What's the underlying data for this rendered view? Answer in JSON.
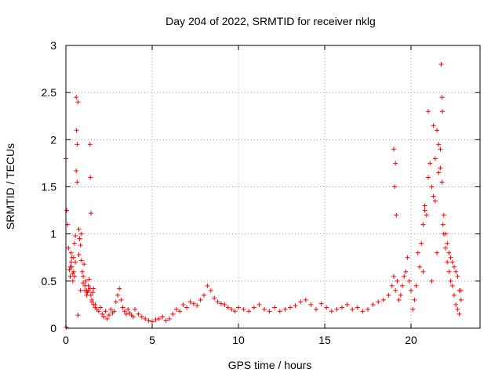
{
  "chart_data": {
    "type": "scatter",
    "title": "Day 204 of 2022, SRMTID for receiver nklg",
    "xlabel": "GPS time / hours",
    "ylabel": "SRMTID / TECUs",
    "xlim": [
      0,
      24
    ],
    "ylim": [
      0,
      3
    ],
    "xticks": [
      0,
      5,
      10,
      15,
      20
    ],
    "yticks": [
      0,
      0.5,
      1,
      1.5,
      2,
      2.5,
      3
    ],
    "xtick_labels": [
      "0",
      "5",
      "10",
      "15",
      "20"
    ],
    "ytick_labels": [
      "0",
      "0.5",
      "1",
      "1.5",
      "2",
      "2.5",
      "3"
    ],
    "grid": true,
    "marker": "+",
    "color": "#ff0000",
    "series": [
      {
        "name": "nklg",
        "x": [
          0.0,
          0.05,
          0.1,
          0.15,
          0.2,
          0.25,
          0.3,
          0.35,
          0.4,
          0.45,
          0.5,
          0.55,
          0.6,
          0.65,
          0.7,
          0.75,
          0.8,
          0.85,
          0.9,
          0.95,
          1.0,
          1.05,
          1.1,
          1.15,
          1.2,
          1.25,
          1.3,
          1.35,
          1.4,
          1.45,
          1.5,
          1.55,
          1.6,
          1.7,
          1.8,
          1.9,
          2.0,
          2.1,
          2.2,
          2.3,
          2.4,
          2.5,
          2.6,
          2.7,
          2.8,
          2.9,
          3.0,
          3.1,
          3.2,
          3.3,
          3.4,
          3.5,
          3.6,
          3.7,
          3.8,
          3.9,
          4.0,
          4.2,
          4.4,
          4.6,
          4.8,
          5.0,
          5.2,
          5.4,
          5.6,
          5.8,
          6.0,
          6.2,
          6.4,
          6.6,
          6.8,
          7.0,
          7.2,
          7.4,
          7.6,
          7.8,
          8.0,
          8.2,
          8.4,
          8.6,
          8.8,
          9.0,
          9.2,
          9.4,
          9.6,
          9.8,
          10.0,
          10.3,
          10.6,
          10.9,
          11.2,
          11.5,
          11.8,
          12.1,
          12.4,
          12.7,
          13.0,
          13.3,
          13.6,
          13.9,
          14.2,
          14.5,
          14.8,
          15.1,
          15.4,
          15.7,
          16.0,
          16.3,
          16.6,
          16.9,
          17.2,
          17.5,
          17.8,
          18.1,
          18.4,
          18.7,
          18.9,
          19.0,
          19.1,
          19.2,
          19.3,
          19.4,
          19.5,
          19.6,
          19.7,
          19.8,
          19.9,
          20.0,
          20.1,
          20.2,
          20.3,
          20.4,
          20.5,
          20.6,
          20.7,
          20.8,
          20.9,
          21.0,
          21.1,
          21.2,
          21.3,
          21.4,
          21.5,
          21.6,
          21.7,
          21.8,
          21.9,
          22.0,
          22.1,
          22.2,
          22.3,
          22.4,
          22.5,
          22.6,
          22.7,
          22.8,
          22.9,
          0.02,
          0.25,
          0.55,
          0.6,
          0.62,
          0.65,
          0.7,
          1.4,
          1.42,
          1.45,
          19.0,
          19.05,
          19.1,
          19.15,
          20.7,
          20.8,
          21.0,
          21.2,
          21.3,
          21.4,
          21.5,
          21.6,
          21.7,
          21.75,
          21.8,
          21.82,
          21.85,
          21.9,
          22.0,
          22.1,
          22.2,
          22.3,
          22.4,
          22.5,
          22.6,
          22.7,
          22.8,
          22.9,
          0.3,
          0.35,
          0.4,
          0.45,
          0.5,
          0.75,
          0.8,
          0.85,
          0.9,
          1.0,
          1.1,
          1.2,
          1.3,
          1.5,
          1.6,
          1.7
        ],
        "values": [
          1.8,
          1.25,
          1.1,
          0.85,
          0.62,
          0.55,
          0.8,
          0.65,
          0.58,
          0.75,
          0.9,
          0.7,
          1.67,
          1.95,
          2.4,
          1.05,
          0.95,
          0.88,
          0.72,
          0.6,
          0.55,
          0.68,
          0.45,
          0.5,
          0.4,
          0.38,
          0.45,
          0.52,
          0.42,
          0.35,
          0.3,
          0.38,
          0.25,
          0.22,
          0.2,
          0.18,
          0.22,
          0.15,
          0.12,
          0.18,
          0.1,
          0.14,
          0.2,
          0.16,
          0.18,
          0.28,
          0.35,
          0.42,
          0.3,
          0.22,
          0.18,
          0.15,
          0.2,
          0.16,
          0.14,
          0.12,
          0.2,
          0.15,
          0.12,
          0.1,
          0.08,
          0.07,
          0.09,
          0.1,
          0.12,
          0.08,
          0.1,
          0.15,
          0.2,
          0.18,
          0.25,
          0.22,
          0.28,
          0.26,
          0.24,
          0.3,
          0.35,
          0.45,
          0.4,
          0.32,
          0.28,
          0.26,
          0.25,
          0.22,
          0.2,
          0.18,
          0.22,
          0.2,
          0.18,
          0.22,
          0.25,
          0.2,
          0.18,
          0.22,
          0.18,
          0.2,
          0.22,
          0.24,
          0.28,
          0.3,
          0.25,
          0.2,
          0.26,
          0.22,
          0.18,
          0.2,
          0.22,
          0.25,
          0.2,
          0.22,
          0.18,
          0.2,
          0.25,
          0.28,
          0.3,
          0.35,
          0.45,
          0.55,
          0.4,
          0.5,
          0.3,
          0.35,
          0.45,
          0.55,
          0.6,
          0.75,
          0.5,
          0.4,
          0.2,
          0.3,
          0.45,
          0.8,
          0.65,
          0.9,
          1.1,
          1.3,
          1.2,
          1.6,
          1.75,
          1.5,
          1.4,
          1.8,
          2.1,
          1.95,
          1.7,
          1.55,
          1.2,
          1.0,
          0.9,
          0.8,
          0.75,
          0.7,
          0.65,
          0.6,
          0.55,
          0.4,
          0.3,
          0.01,
          0.65,
          0.98,
          2.45,
          2.1,
          1.55,
          0.14,
          1.95,
          1.6,
          1.22,
          1.9,
          1.5,
          1.75,
          1.2,
          0.6,
          1.25,
          2.3,
          0.5,
          2.15,
          1.35,
          0.8,
          1.65,
          1.9,
          2.8,
          2.45,
          2.3,
          1.1,
          1.0,
          0.85,
          0.7,
          0.6,
          0.5,
          0.45,
          0.35,
          0.25,
          0.2,
          0.15,
          0.4,
          0.7,
          0.75,
          0.5,
          0.6,
          0.55,
          0.78,
          0.95,
          0.4,
          1.0,
          0.48,
          0.4,
          0.35,
          0.4,
          0.28,
          0.42,
          0.25
        ]
      }
    ]
  }
}
